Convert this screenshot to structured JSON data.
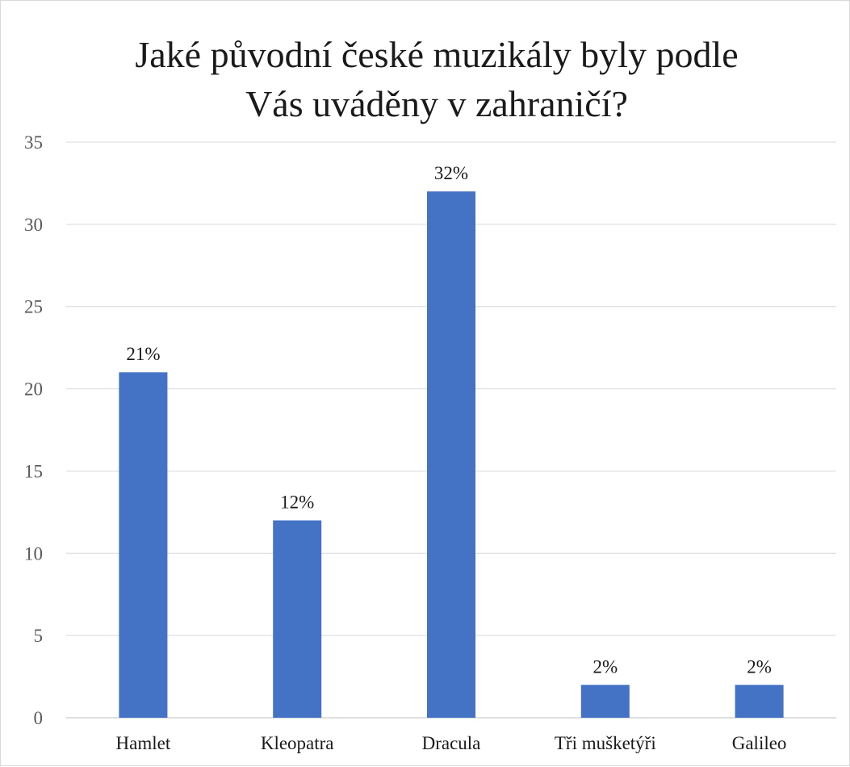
{
  "chart_data": {
    "type": "bar",
    "title_lines": [
      "Jaké původní české muzikály byly podle",
      "Vás uváděny v zahraničí?"
    ],
    "categories": [
      "Hamlet",
      "Kleopatra",
      "Dracula",
      "Tři mušketýři",
      "Galileo"
    ],
    "values": [
      21,
      12,
      32,
      2,
      2
    ],
    "data_labels": [
      "21%",
      "12%",
      "32%",
      "2%",
      "2%"
    ],
    "ylim": [
      0,
      35
    ],
    "yticks": [
      0,
      5,
      10,
      15,
      20,
      25,
      30,
      35
    ],
    "grid": true,
    "legend": "none",
    "colors": {
      "bar": "#4472C4",
      "grid": "#d9d9d9",
      "axis": "#bfbfbf"
    }
  }
}
